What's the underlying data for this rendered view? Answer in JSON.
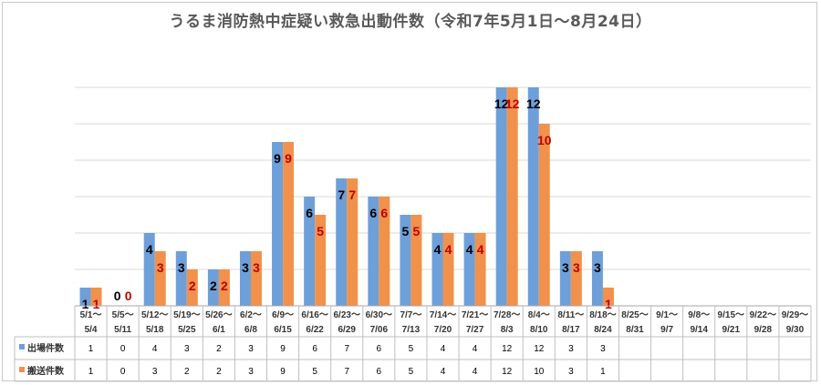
{
  "chart_data": {
    "type": "bar",
    "title": "うるま消防熱中症疑い救急出動件数（令和7年5月1日～8月24日）",
    "categories_top": [
      "5/1～",
      "5/5～",
      "5/12～",
      "5/19～",
      "5/26～",
      "6/2～",
      "6/9～",
      "6/16～",
      "6/23～",
      "6/30～",
      "7/7～",
      "7/14～",
      "7/21～",
      "7/28～",
      "8/4～",
      "8/11～",
      "8/18～",
      "8/25～",
      "9/1～",
      "9/8～",
      "9/15～",
      "9/22～",
      "9/29～"
    ],
    "categories_bottom": [
      "5/4",
      "5/11",
      "5/18",
      "5/25",
      "6/1",
      "6/8",
      "6/15",
      "6/22",
      "6/29",
      "7/06",
      "7/13",
      "7/20",
      "7/27",
      "8/3",
      "8/10",
      "8/17",
      "8/24",
      "8/31",
      "9/7",
      "9/14",
      "9/21",
      "9/28",
      "9/30"
    ],
    "series": [
      {
        "name": "出場件数",
        "color": "#6f9fd8",
        "label_color": "#000000",
        "values": [
          1,
          0,
          4,
          3,
          2,
          3,
          9,
          6,
          7,
          6,
          5,
          4,
          4,
          12,
          12,
          3,
          3,
          null,
          null,
          null,
          null,
          null,
          null
        ]
      },
      {
        "name": "搬送件数",
        "color": "#f0924c",
        "label_color": "#c00000",
        "values": [
          1,
          0,
          3,
          2,
          2,
          3,
          9,
          5,
          7,
          6,
          5,
          4,
          4,
          12,
          10,
          3,
          1,
          null,
          null,
          null,
          null,
          null,
          null
        ]
      }
    ],
    "ylim": [
      0,
      12
    ],
    "grid": true,
    "legend": "table-rows"
  }
}
